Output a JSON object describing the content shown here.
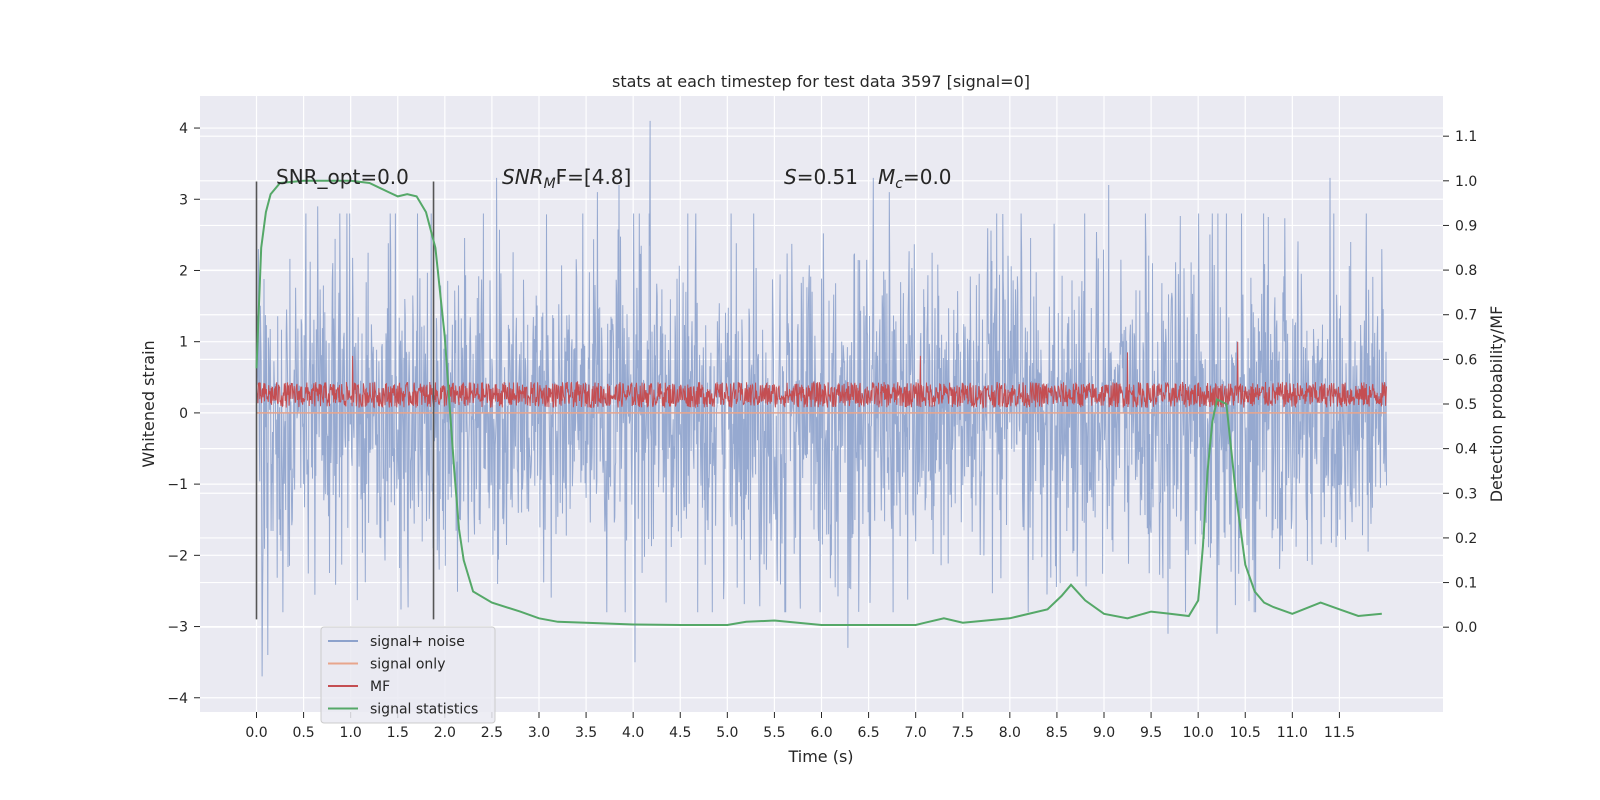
{
  "chart_data": {
    "type": "line",
    "title": "stats at each timestep for test data 3597 [signal=0]",
    "xlabel": "Time (s)",
    "ylabel_left": "Whitened strain",
    "ylabel_right": "Detection probability/MF",
    "xlim": [
      -0.6,
      12.6
    ],
    "ylim_left": [
      -4.2,
      4.45
    ],
    "ylim_right": [
      -0.19,
      1.19
    ],
    "x_ticks": [
      0.0,
      0.5,
      1.0,
      1.5,
      2.0,
      2.5,
      3.0,
      3.5,
      4.0,
      4.5,
      5.0,
      5.5,
      6.0,
      6.5,
      7.0,
      7.5,
      8.0,
      8.5,
      9.0,
      9.5,
      10.0,
      10.5,
      11.0,
      11.5
    ],
    "x_tick_labels": [
      "0.0",
      "0.5",
      "1.0",
      "1.5",
      "2.0",
      "2.5",
      "3.0",
      "3.5",
      "4.0",
      "4.5",
      "5.0",
      "5.5",
      "6.0",
      "6.5",
      "7.0",
      "7.5",
      "8.0",
      "8.5",
      "9.0",
      "9.5",
      "10.0",
      "10.5",
      "11.0",
      "11.5"
    ],
    "y_left_ticks": [
      4,
      3,
      2,
      1,
      0,
      -1,
      -2,
      -3,
      -4
    ],
    "y_left_tick_labels": [
      "4",
      "3",
      "2",
      "1",
      "0",
      "−1",
      "−2",
      "−3",
      "−4"
    ],
    "y_right_ticks": [
      1.1,
      1.0,
      0.9,
      0.8,
      0.7,
      0.6,
      0.5,
      0.4,
      0.3,
      0.2,
      0.1,
      0.0
    ],
    "y_right_tick_labels": [
      "1.1",
      "1.0",
      "0.9",
      "0.8",
      "0.7",
      "0.6",
      "0.5",
      "0.4",
      "0.3",
      "0.2",
      "0.1",
      "0.0"
    ],
    "grid": true,
    "legend_placement": "lower-left",
    "legend": [
      {
        "label": "signal+ noise",
        "color": "#8da2cc"
      },
      {
        "label": "signal only",
        "color": "#e8a58c"
      },
      {
        "label": "MF",
        "color": "#c44e52"
      },
      {
        "label": "signal statistics",
        "color": "#55a868"
      }
    ],
    "annotations": {
      "snr_opt": "SNR_opt=0.0",
      "snr_mf_main": "SNR",
      "snr_mf_sub": "M",
      "snr_mf_tail": "F=[4.8]",
      "s_main": "S",
      "s_tail": "=0.51",
      "mc_main": "M",
      "mc_sub": "c",
      "mc_tail": "=0.0"
    },
    "vertical_lines_x": [
      0.0,
      1.88
    ],
    "vertical_lines_ylim_left": [
      -2.9,
      3.25
    ],
    "series": [
      {
        "name": "signal+ noise",
        "axis": "left",
        "color": "#8da2cc",
        "x_range": [
          0.0,
          12.0
        ],
        "envelope_typical": 1.6,
        "peaks_x": [
          0.02,
          0.06,
          0.12,
          0.65,
          1.42,
          2.55,
          3.62,
          3.85,
          4.18,
          4.02,
          6.28,
          6.55,
          6.72,
          9.05,
          9.68,
          10.2,
          11.62,
          11.4,
          11.95
        ],
        "peaks_y": [
          2.3,
          -3.7,
          -3.4,
          2.9,
          2.8,
          3.3,
          3.1,
          3.2,
          4.1,
          -3.5,
          -3.3,
          3.3,
          3.1,
          3.2,
          -3.1,
          -3.1,
          2.4,
          3.3,
          2.3
        ]
      },
      {
        "name": "signal only",
        "axis": "left",
        "color": "#e8a58c",
        "x": [
          0.0,
          12.0
        ],
        "y": [
          0.0,
          0.0
        ]
      },
      {
        "name": "MF",
        "axis": "left",
        "color": "#c44e52",
        "x_range": [
          0.0,
          12.0
        ],
        "baseline": 0.2,
        "typical_max": 0.55,
        "peaks_x": [
          1.02,
          7.05,
          9.25,
          10.42
        ],
        "peaks_y": [
          0.8,
          0.8,
          0.85,
          1.0
        ]
      },
      {
        "name": "signal statistics",
        "axis": "right",
        "color": "#55a868",
        "x": [
          0.0,
          0.05,
          0.1,
          0.15,
          0.25,
          0.5,
          1.0,
          1.2,
          1.4,
          1.5,
          1.6,
          1.7,
          1.8,
          1.9,
          2.0,
          2.05,
          2.1,
          2.15,
          2.2,
          2.3,
          2.5,
          2.8,
          3.0,
          3.2,
          3.5,
          4.0,
          4.5,
          5.0,
          5.2,
          5.5,
          6.0,
          6.5,
          7.0,
          7.1,
          7.3,
          7.5,
          8.0,
          8.4,
          8.55,
          8.65,
          8.8,
          9.0,
          9.25,
          9.5,
          9.7,
          9.9,
          10.0,
          10.05,
          10.1,
          10.15,
          10.2,
          10.3,
          10.35,
          10.4,
          10.5,
          10.6,
          10.7,
          10.8,
          11.0,
          11.3,
          11.5,
          11.7,
          11.95
        ],
        "y": [
          0.58,
          0.85,
          0.93,
          0.97,
          0.995,
          1.0,
          1.0,
          0.995,
          0.975,
          0.965,
          0.97,
          0.965,
          0.93,
          0.85,
          0.65,
          0.5,
          0.35,
          0.22,
          0.15,
          0.08,
          0.055,
          0.035,
          0.02,
          0.012,
          0.01,
          0.006,
          0.005,
          0.005,
          0.012,
          0.015,
          0.005,
          0.005,
          0.005,
          0.01,
          0.02,
          0.01,
          0.02,
          0.04,
          0.07,
          0.095,
          0.06,
          0.03,
          0.02,
          0.035,
          0.03,
          0.025,
          0.06,
          0.18,
          0.35,
          0.46,
          0.51,
          0.5,
          0.4,
          0.3,
          0.14,
          0.08,
          0.055,
          0.045,
          0.03,
          0.055,
          0.04,
          0.025,
          0.03
        ]
      }
    ]
  }
}
